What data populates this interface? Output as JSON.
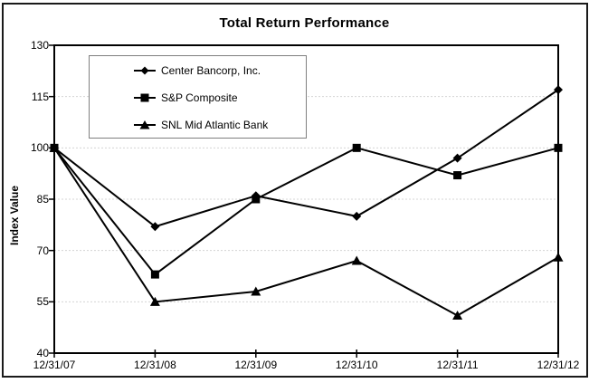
{
  "chart_data": {
    "type": "line",
    "title": "Total Return Performance",
    "xlabel": "",
    "ylabel": "Index Value",
    "categories": [
      "12/31/07",
      "12/31/08",
      "12/31/09",
      "12/31/10",
      "12/31/11",
      "12/31/12"
    ],
    "series": [
      {
        "name": "Center Bancorp, Inc.",
        "marker": "diamond",
        "values": [
          100,
          77,
          86,
          80,
          97,
          117
        ]
      },
      {
        "name": "S&P Composite",
        "marker": "square",
        "values": [
          100,
          63,
          85,
          100,
          92,
          100
        ]
      },
      {
        "name": "SNL Mid Atlantic Bank",
        "marker": "triangle",
        "values": [
          100,
          55,
          58,
          67,
          51,
          68
        ]
      }
    ],
    "ylim": [
      40,
      130
    ],
    "y_ticks": [
      40,
      55,
      70,
      85,
      100,
      115,
      130
    ],
    "grid": "horizontal-dashed",
    "legend_position": "top-left-inside",
    "colors": {
      "series": "#000000",
      "gridline": "#d4d4d4",
      "plot_border": "#000000",
      "background": "#ffffff",
      "legend_border": "#7f7f7f"
    }
  }
}
